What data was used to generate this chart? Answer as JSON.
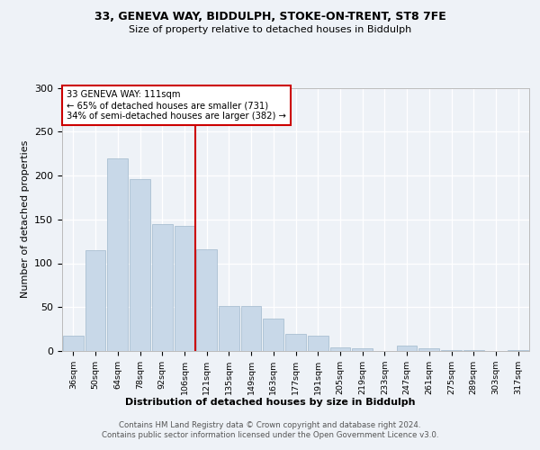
{
  "title_line1": "33, GENEVA WAY, BIDDULPH, STOKE-ON-TRENT, ST8 7FE",
  "title_line2": "Size of property relative to detached houses in Biddulph",
  "xlabel": "Distribution of detached houses by size in Biddulph",
  "ylabel": "Number of detached properties",
  "categories": [
    "36sqm",
    "50sqm",
    "64sqm",
    "78sqm",
    "92sqm",
    "106sqm",
    "121sqm",
    "135sqm",
    "149sqm",
    "163sqm",
    "177sqm",
    "191sqm",
    "205sqm",
    "219sqm",
    "233sqm",
    "247sqm",
    "261sqm",
    "275sqm",
    "289sqm",
    "303sqm",
    "317sqm"
  ],
  "values": [
    17,
    115,
    220,
    196,
    145,
    143,
    116,
    51,
    51,
    37,
    20,
    17,
    4,
    3,
    0,
    6,
    3,
    1,
    1,
    0,
    1
  ],
  "bar_color": "#c8d8e8",
  "bar_edge_color": "#a0b8cc",
  "vline_x": 5.5,
  "annotation_text": "33 GENEVA WAY: 111sqm\n← 65% of detached houses are smaller (731)\n34% of semi-detached houses are larger (382) →",
  "vline_color": "#cc0000",
  "annotation_box_color": "#cc0000",
  "footer_text": "Contains HM Land Registry data © Crown copyright and database right 2024.\nContains public sector information licensed under the Open Government Licence v3.0.",
  "ylim": [
    0,
    300
  ],
  "yticks": [
    0,
    50,
    100,
    150,
    200,
    250,
    300
  ],
  "background_color": "#eef2f7"
}
